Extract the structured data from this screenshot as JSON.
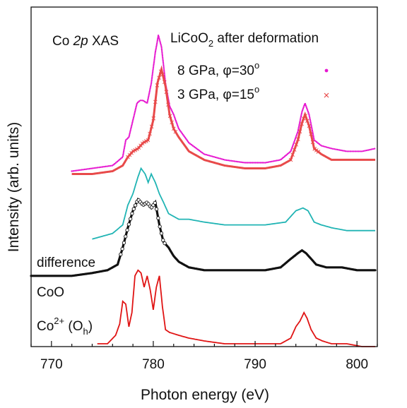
{
  "chart_data": {
    "type": "line",
    "xlabel": "Photon energy (eV)",
    "ylabel": "Intensity (arb. units)",
    "xlim": [
      768,
      802
    ],
    "xticks": [
      770,
      780,
      790,
      800
    ],
    "yticks_shown": false,
    "grid": false,
    "annotations": {
      "title_left": {
        "text": "Co ",
        "italic": "2p",
        "rest": " XAS"
      },
      "title_right": {
        "text": "LiCoO",
        "sub": "2",
        "rest": " after deformation"
      },
      "legend": [
        {
          "text": "8 GPa, φ=30",
          "sup": "o",
          "marker": "dot",
          "color": "#e619d0"
        },
        {
          "text": "3 GPa, φ=15",
          "sup": "o",
          "marker": "cross",
          "color": "#e84a4a"
        }
      ],
      "curve_labels": {
        "difference": "difference",
        "coo": "CoO",
        "co2": {
          "text": "Co",
          "sup": "2+",
          "rest": " (O",
          "sub": "h",
          "tail": ")"
        }
      }
    },
    "series": [
      {
        "name": "8 GPa, φ=30o",
        "style": "dots",
        "color": "#e619d0",
        "x": [
          772.0,
          774.0,
          776.0,
          777.0,
          777.3,
          777.6,
          778.0,
          778.4,
          778.7,
          779.0,
          779.4,
          779.8,
          780.2,
          780.5,
          780.8,
          781.2,
          781.6,
          782.0,
          782.5,
          783.5,
          785.0,
          787.0,
          789.0,
          791.0,
          792.5,
          793.5,
          794.2,
          794.6,
          794.9,
          795.3,
          795.8,
          796.5,
          797.5,
          799.0,
          800.5,
          801.8
        ],
        "y": [
          0.62,
          0.63,
          0.64,
          0.67,
          0.73,
          0.74,
          0.8,
          0.86,
          0.87,
          0.87,
          0.86,
          0.93,
          1.04,
          1.1,
          1.06,
          0.93,
          0.85,
          0.82,
          0.77,
          0.72,
          0.68,
          0.66,
          0.65,
          0.65,
          0.66,
          0.69,
          0.76,
          0.83,
          0.86,
          0.82,
          0.73,
          0.71,
          0.7,
          0.69,
          0.69,
          0.7
        ]
      },
      {
        "name": "3 GPa, φ=15o",
        "style": "crosses",
        "color": "#e84a4a",
        "x": [
          772.0,
          774.0,
          776.0,
          777.0,
          777.5,
          778.0,
          778.5,
          779.0,
          779.5,
          780.0,
          780.4,
          780.8,
          781.2,
          781.6,
          782.0,
          782.5,
          783.5,
          785.0,
          787.0,
          789.0,
          791.0,
          792.5,
          793.5,
          794.2,
          794.6,
          794.9,
          795.3,
          795.8,
          796.5,
          797.5,
          799.0,
          800.5,
          801.8
        ],
        "y": [
          0.61,
          0.61,
          0.62,
          0.64,
          0.67,
          0.69,
          0.7,
          0.72,
          0.73,
          0.8,
          0.93,
          0.98,
          0.92,
          0.82,
          0.77,
          0.74,
          0.69,
          0.66,
          0.64,
          0.63,
          0.63,
          0.64,
          0.66,
          0.73,
          0.79,
          0.82,
          0.78,
          0.7,
          0.68,
          0.66,
          0.66,
          0.66,
          0.66
        ]
      },
      {
        "name": "difference",
        "style": "line",
        "color": "#20b4b4",
        "x": [
          774.0,
          776.0,
          777.0,
          777.5,
          778.0,
          778.5,
          778.8,
          779.2,
          779.5,
          779.8,
          780.2,
          780.6,
          781.0,
          781.5,
          782.5,
          783.5,
          785.0,
          787.0,
          789.0,
          791.0,
          793.0,
          794.0,
          794.7,
          795.2,
          795.8,
          796.5,
          797.5,
          799.0,
          800.5,
          801.8
        ],
        "y": [
          0.38,
          0.4,
          0.43,
          0.5,
          0.54,
          0.6,
          0.63,
          0.61,
          0.58,
          0.61,
          0.58,
          0.54,
          0.51,
          0.47,
          0.45,
          0.45,
          0.44,
          0.43,
          0.43,
          0.43,
          0.44,
          0.48,
          0.49,
          0.48,
          0.44,
          0.43,
          0.42,
          0.41,
          0.41,
          0.41
        ]
      },
      {
        "name": "CoO",
        "style": "thick-dots",
        "color": "#111111",
        "x": [
          768.0,
          770.0,
          772.0,
          774.0,
          775.5,
          776.5,
          777.0,
          777.5,
          778.0,
          778.5,
          779.0,
          779.4,
          779.8,
          780.2,
          780.6,
          781.0,
          781.5,
          782.0,
          782.5,
          783.5,
          785.0,
          787.0,
          789.0,
          791.0,
          792.5,
          793.5,
          794.2,
          794.6,
          795.0,
          795.5,
          796.0,
          797.0,
          798.5,
          800.0,
          801.8
        ],
        "y": [
          0.25,
          0.25,
          0.25,
          0.26,
          0.27,
          0.29,
          0.35,
          0.42,
          0.48,
          0.52,
          0.5,
          0.51,
          0.49,
          0.51,
          0.43,
          0.37,
          0.35,
          0.32,
          0.3,
          0.28,
          0.27,
          0.27,
          0.27,
          0.27,
          0.28,
          0.31,
          0.33,
          0.34,
          0.33,
          0.31,
          0.29,
          0.28,
          0.28,
          0.27,
          0.27
        ]
      },
      {
        "name": "Co2+ (Oh)",
        "style": "line",
        "color": "#e01414",
        "x": [
          774.5,
          775.5,
          776.3,
          776.7,
          777.0,
          777.3,
          777.6,
          777.9,
          778.2,
          778.5,
          778.8,
          779.1,
          779.4,
          779.7,
          780.0,
          780.3,
          780.6,
          780.9,
          781.2,
          781.6,
          782.5,
          783.5,
          785.0,
          787.0,
          789.0,
          791.0,
          792.5,
          793.5,
          794.0,
          794.4,
          794.8,
          795.1,
          795.5,
          796.0,
          796.6,
          797.5,
          799.0,
          800.5,
          801.8
        ],
        "y": [
          0.01,
          0.01,
          0.04,
          0.08,
          0.16,
          0.15,
          0.07,
          0.12,
          0.25,
          0.27,
          0.26,
          0.21,
          0.25,
          0.2,
          0.13,
          0.21,
          0.25,
          0.14,
          0.06,
          0.05,
          0.04,
          0.03,
          0.02,
          0.01,
          0.01,
          0.01,
          0.01,
          0.03,
          0.07,
          0.09,
          0.12,
          0.1,
          0.06,
          0.03,
          0.02,
          0.01,
          0.01,
          0.0,
          0.0
        ]
      }
    ]
  }
}
